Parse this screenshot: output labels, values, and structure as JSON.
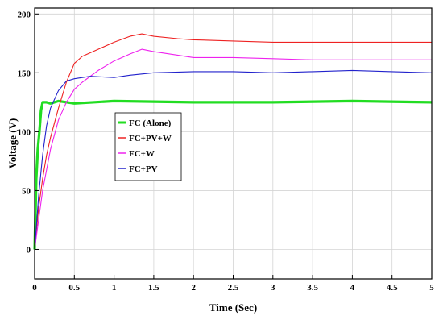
{
  "chart_data": {
    "type": "line",
    "title": "",
    "xlabel": "Time (Sec)",
    "ylabel": "Voltage (V)",
    "xlim": [
      0,
      5
    ],
    "ylim": [
      -25,
      205
    ],
    "xticks": [
      0,
      0.5,
      1,
      1.5,
      2,
      2.5,
      3,
      3.5,
      4,
      4.5,
      5
    ],
    "xtick_labels": [
      "0",
      "0.5",
      "1",
      "1.5",
      "2",
      "2.5",
      "3",
      "3.5",
      "4",
      "4.5",
      "5"
    ],
    "yticks": [
      0,
      50,
      100,
      150,
      200
    ],
    "ytick_labels": [
      "0",
      "50",
      "100",
      "150",
      "200"
    ],
    "grid": true,
    "legend_position": "center-left",
    "series": [
      {
        "name": "FC (Alone)",
        "color": "#22dd22",
        "x": [
          0,
          0.02,
          0.04,
          0.06,
          0.08,
          0.1,
          0.12,
          0.15,
          0.2,
          0.3,
          0.5,
          1,
          2,
          3,
          4,
          5
        ],
        "y": [
          0,
          60,
          85,
          100,
          118,
          125,
          125,
          125,
          124,
          126,
          124,
          126,
          125,
          125,
          126,
          125
        ]
      },
      {
        "name": "FC+PV+W",
        "color": "#ee2222",
        "x": [
          0,
          0.05,
          0.1,
          0.15,
          0.2,
          0.3,
          0.4,
          0.5,
          0.6,
          0.8,
          1,
          1.2,
          1.35,
          1.5,
          1.8,
          2,
          2.5,
          3,
          3.5,
          4,
          4.5,
          5
        ],
        "y": [
          0,
          35,
          60,
          80,
          95,
          120,
          142,
          158,
          164,
          170,
          176,
          181,
          183,
          181,
          179,
          178,
          177,
          176,
          176,
          176,
          176,
          176
        ]
      },
      {
        "name": "FC+W",
        "color": "#ee22ee",
        "x": [
          0,
          0.05,
          0.1,
          0.2,
          0.3,
          0.4,
          0.5,
          0.6,
          0.8,
          1,
          1.2,
          1.35,
          1.5,
          1.8,
          2,
          2.5,
          3,
          3.5,
          4,
          4.5,
          5
        ],
        "y": [
          0,
          25,
          50,
          85,
          110,
          125,
          136,
          142,
          152,
          160,
          166,
          170,
          168,
          165,
          163,
          163,
          162,
          161,
          161,
          161,
          161
        ]
      },
      {
        "name": "FC+PV",
        "color": "#2222cc",
        "x": [
          0,
          0.05,
          0.1,
          0.15,
          0.2,
          0.3,
          0.4,
          0.5,
          0.7,
          1,
          1.2,
          1.5,
          2,
          2.5,
          3,
          3.5,
          4,
          4.5,
          5
        ],
        "y": [
          0,
          45,
          80,
          105,
          120,
          135,
          143,
          145,
          147,
          146,
          148,
          150,
          151,
          151,
          150,
          151,
          152,
          151,
          150
        ]
      }
    ]
  }
}
